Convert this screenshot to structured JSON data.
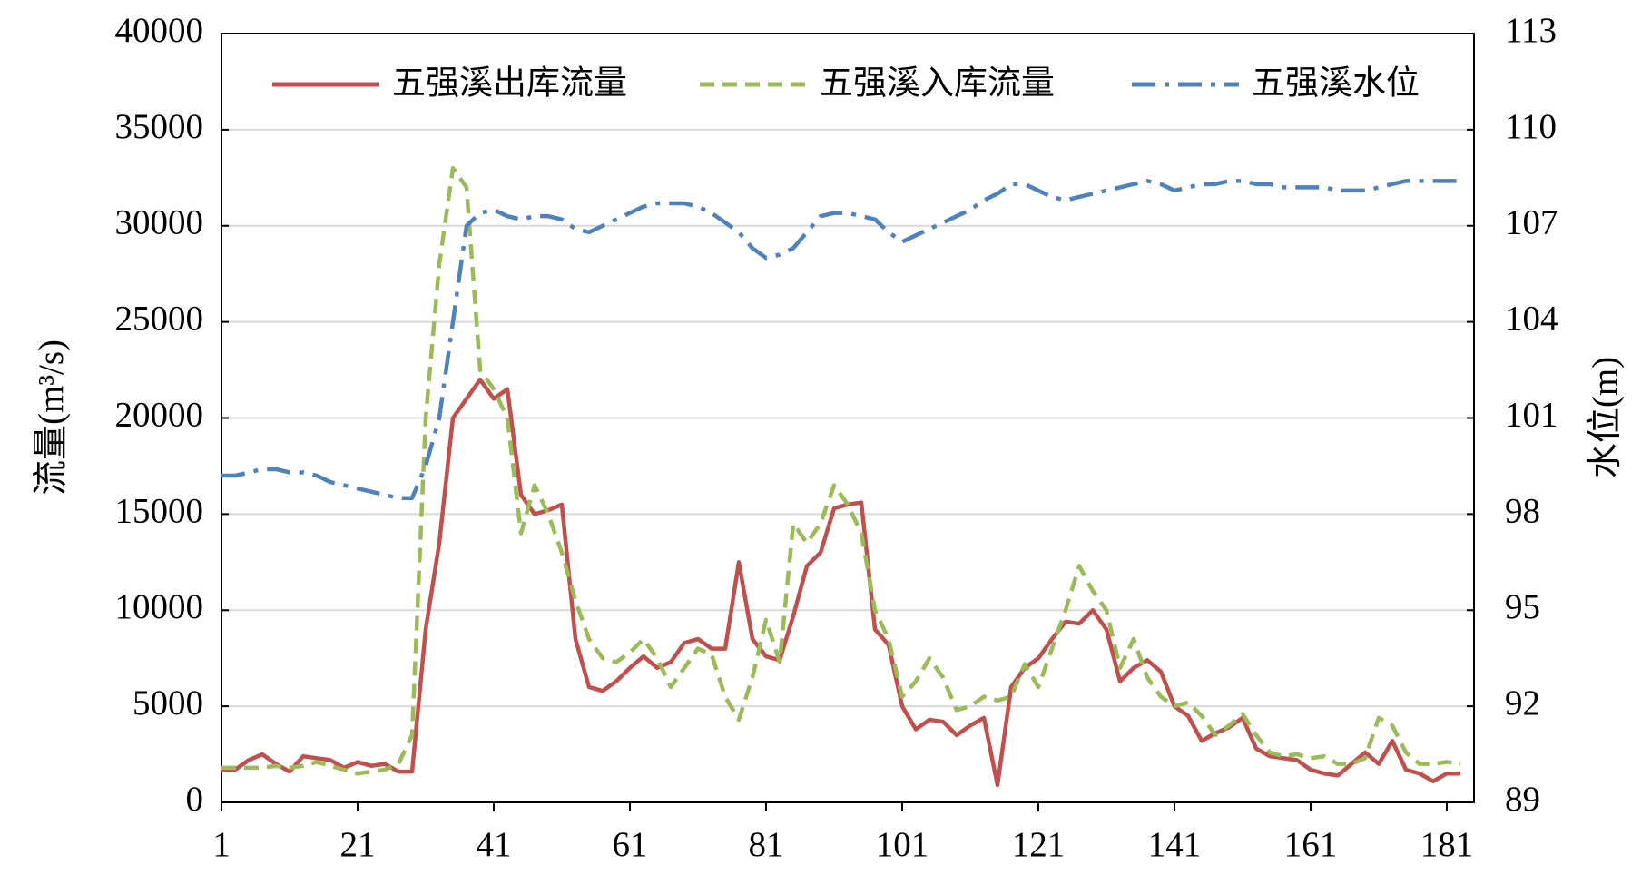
{
  "chart_data": {
    "type": "line",
    "y_label": "流量(m³/s)",
    "y2_label": "水位(m)",
    "x": [
      1,
      3,
      5,
      7,
      9,
      11,
      13,
      15,
      17,
      19,
      21,
      23,
      25,
      27,
      29,
      31,
      33,
      35,
      37,
      39,
      41,
      43,
      45,
      47,
      49,
      51,
      53,
      55,
      57,
      59,
      61,
      63,
      65,
      67,
      69,
      71,
      73,
      75,
      77,
      79,
      81,
      83,
      85,
      87,
      89,
      91,
      93,
      95,
      97,
      99,
      101,
      103,
      105,
      107,
      109,
      111,
      113,
      115,
      117,
      119,
      121,
      123,
      125,
      127,
      129,
      131,
      133,
      135,
      137,
      139,
      141,
      143,
      145,
      147,
      149,
      151,
      153,
      155,
      157,
      159,
      161,
      163,
      165,
      167,
      169,
      171,
      173,
      175,
      177,
      179,
      181,
      183
    ],
    "series": [
      {
        "name": "五强溪出库流量",
        "color": "#c0504d",
        "dash": "solid",
        "values": [
          1700,
          1700,
          2200,
          2500,
          2000,
          1600,
          2400,
          2300,
          2200,
          1800,
          2100,
          1900,
          2000,
          1600,
          1600,
          9000,
          13500,
          20000,
          21000,
          22000,
          21000,
          21500,
          16000,
          15000,
          15200,
          15500,
          8500,
          6000,
          5800,
          6300,
          7000,
          7600,
          7000,
          7300,
          8300,
          8500,
          8000,
          8000,
          12500,
          8500,
          7600,
          7400,
          9700,
          12300,
          13000,
          15300,
          15500,
          15600,
          9000,
          8200,
          5000,
          3800,
          4300,
          4200,
          3500,
          4000,
          4400,
          900,
          6000,
          7000,
          7500,
          8500,
          9400,
          9300,
          10000,
          9000,
          6300,
          7000,
          7400,
          6800,
          5000,
          4500,
          3200,
          3600,
          3900,
          4400,
          2800,
          2400,
          2300,
          2200,
          1700,
          1500,
          1400,
          2000,
          2600,
          2000,
          3200,
          1700,
          1500,
          1100,
          1500,
          1500
        ]
      },
      {
        "name": "五强溪入库流量",
        "color": "#9bbb59",
        "dash": "dash",
        "values": [
          1800,
          1800,
          1800,
          1800,
          1900,
          1800,
          1900,
          2100,
          1900,
          1700,
          1500,
          1600,
          1700,
          2000,
          3500,
          20000,
          28000,
          33000,
          32000,
          22500,
          21500,
          20000,
          14000,
          16500,
          15000,
          13000,
          10500,
          8500,
          7500,
          7300,
          7800,
          8500,
          7500,
          6000,
          7000,
          8000,
          7700,
          5500,
          4300,
          6500,
          9500,
          7300,
          14500,
          13500,
          14500,
          16500,
          15500,
          14000,
          10000,
          8500,
          5500,
          6300,
          7500,
          6500,
          4800,
          5000,
          5500,
          5300,
          5500,
          7200,
          6000,
          8000,
          10000,
          12300,
          11000,
          10000,
          7000,
          8500,
          6500,
          5500,
          5000,
          5200,
          4500,
          3500,
          4000,
          4600,
          3500,
          2600,
          2400,
          2500,
          2300,
          2400,
          2000,
          2000,
          2300,
          4400,
          4000,
          2600,
          2000,
          2000,
          2100,
          2000
        ]
      },
      {
        "name": "五强溪水位",
        "color": "#4f81bd",
        "dash": "dashdot",
        "axis": "y2",
        "values": [
          99.2,
          99.2,
          99.3,
          99.4,
          99.4,
          99.3,
          99.3,
          99.2,
          99.0,
          98.9,
          98.8,
          98.7,
          98.6,
          98.5,
          98.5,
          99.5,
          101.0,
          104.0,
          107.0,
          107.4,
          107.5,
          107.3,
          107.2,
          107.3,
          107.3,
          107.2,
          106.9,
          106.8,
          107.0,
          107.2,
          107.4,
          107.6,
          107.7,
          107.7,
          107.7,
          107.6,
          107.4,
          107.1,
          106.8,
          106.3,
          106.0,
          106.1,
          106.3,
          106.8,
          107.3,
          107.4,
          107.4,
          107.3,
          107.2,
          106.8,
          106.5,
          106.7,
          106.9,
          107.1,
          107.3,
          107.5,
          107.8,
          108.0,
          108.3,
          108.3,
          108.1,
          107.9,
          107.8,
          107.9,
          108.0,
          108.1,
          108.2,
          108.3,
          108.4,
          108.3,
          108.1,
          108.2,
          108.3,
          108.3,
          108.4,
          108.4,
          108.3,
          108.3,
          108.2,
          108.2,
          108.2,
          108.2,
          108.1,
          108.1,
          108.1,
          108.2,
          108.3,
          108.4,
          108.4,
          108.4,
          108.4,
          108.4
        ]
      }
    ],
    "xlim": [
      1,
      185
    ],
    "xticks": [
      1,
      21,
      41,
      61,
      81,
      101,
      121,
      141,
      161,
      181
    ],
    "ylim": [
      0,
      40000
    ],
    "yticks": [
      0,
      5000,
      10000,
      15000,
      20000,
      25000,
      30000,
      35000,
      40000
    ],
    "y2lim": [
      89,
      113
    ],
    "y2ticks": [
      89,
      92,
      95,
      98,
      101,
      104,
      107,
      110,
      113
    ],
    "grid": true,
    "legend": "top"
  }
}
